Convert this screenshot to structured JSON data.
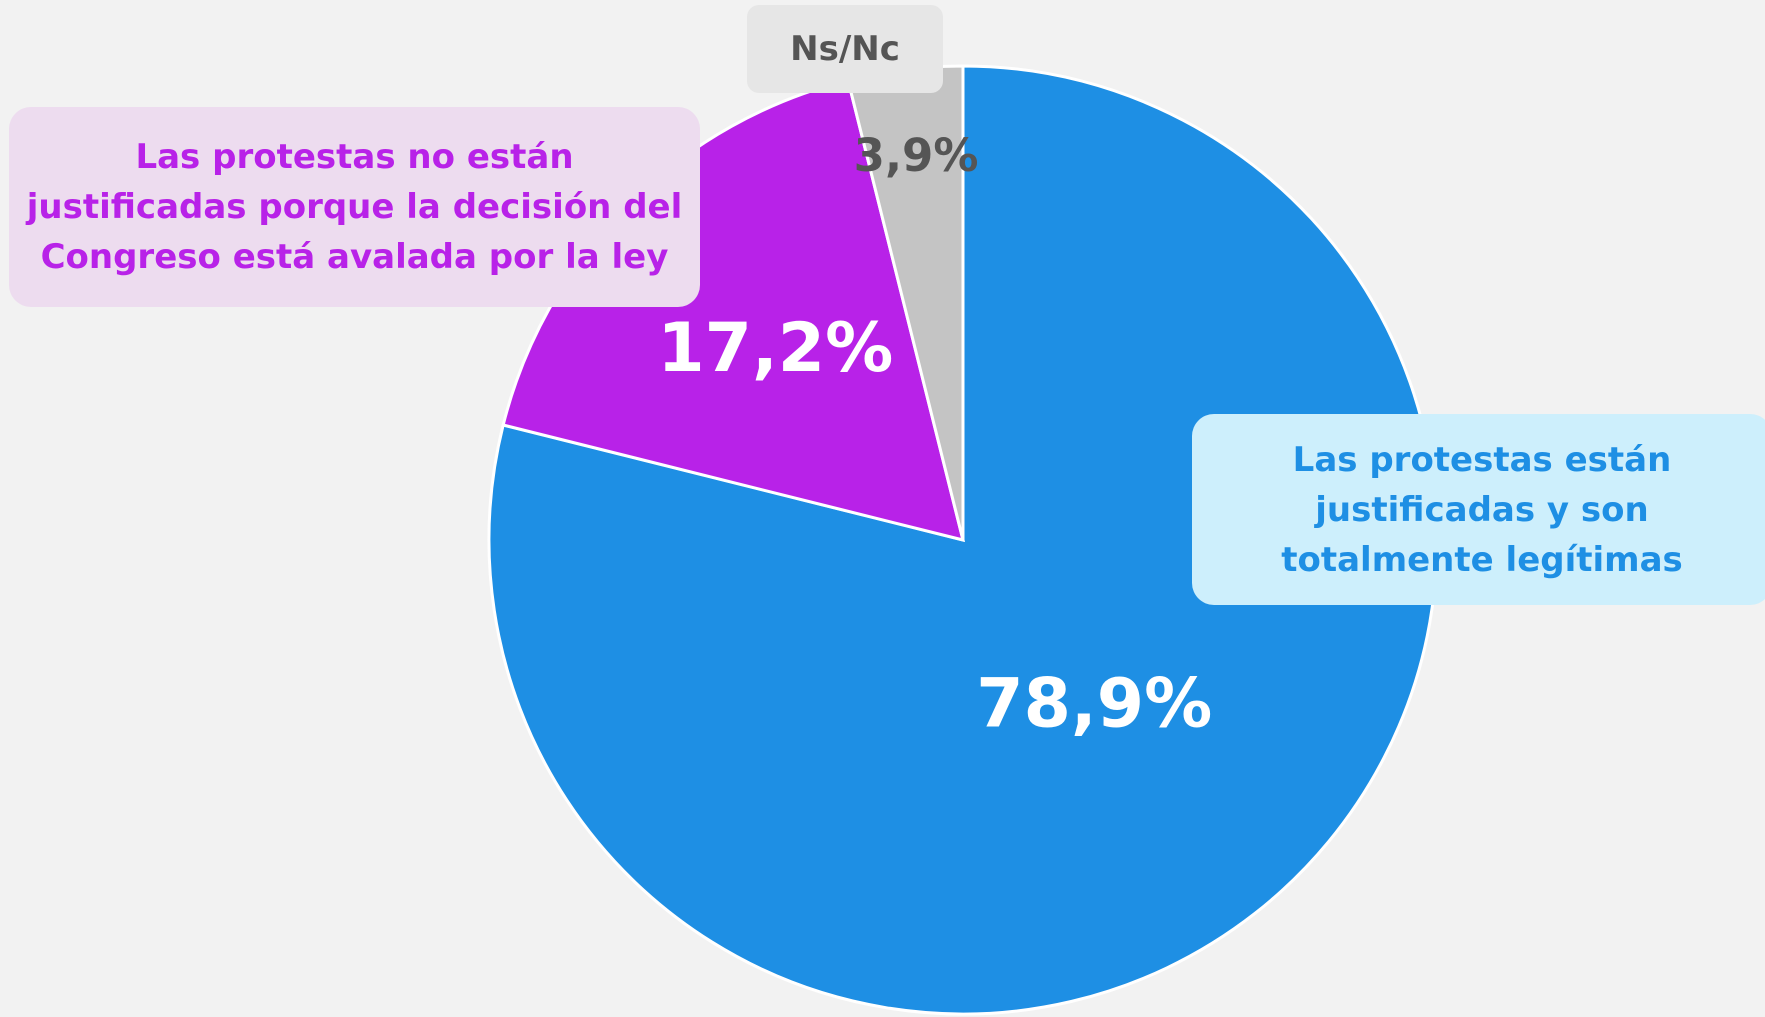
{
  "chart_data": {
    "type": "pie",
    "categories": [
      "Las protestas están justificadas y son totalmente legítimas",
      "Las protestas no están justificadas porque la decisión del Congreso está avalada por la ley",
      "Ns/Nc"
    ],
    "values": [
      78.9,
      17.2,
      3.9
    ],
    "value_labels": [
      "78,9%",
      "17,2%",
      "3,9%"
    ],
    "colors": [
      "#1e8fe4",
      "#b822e8",
      "#c4c4c4"
    ]
  }
}
